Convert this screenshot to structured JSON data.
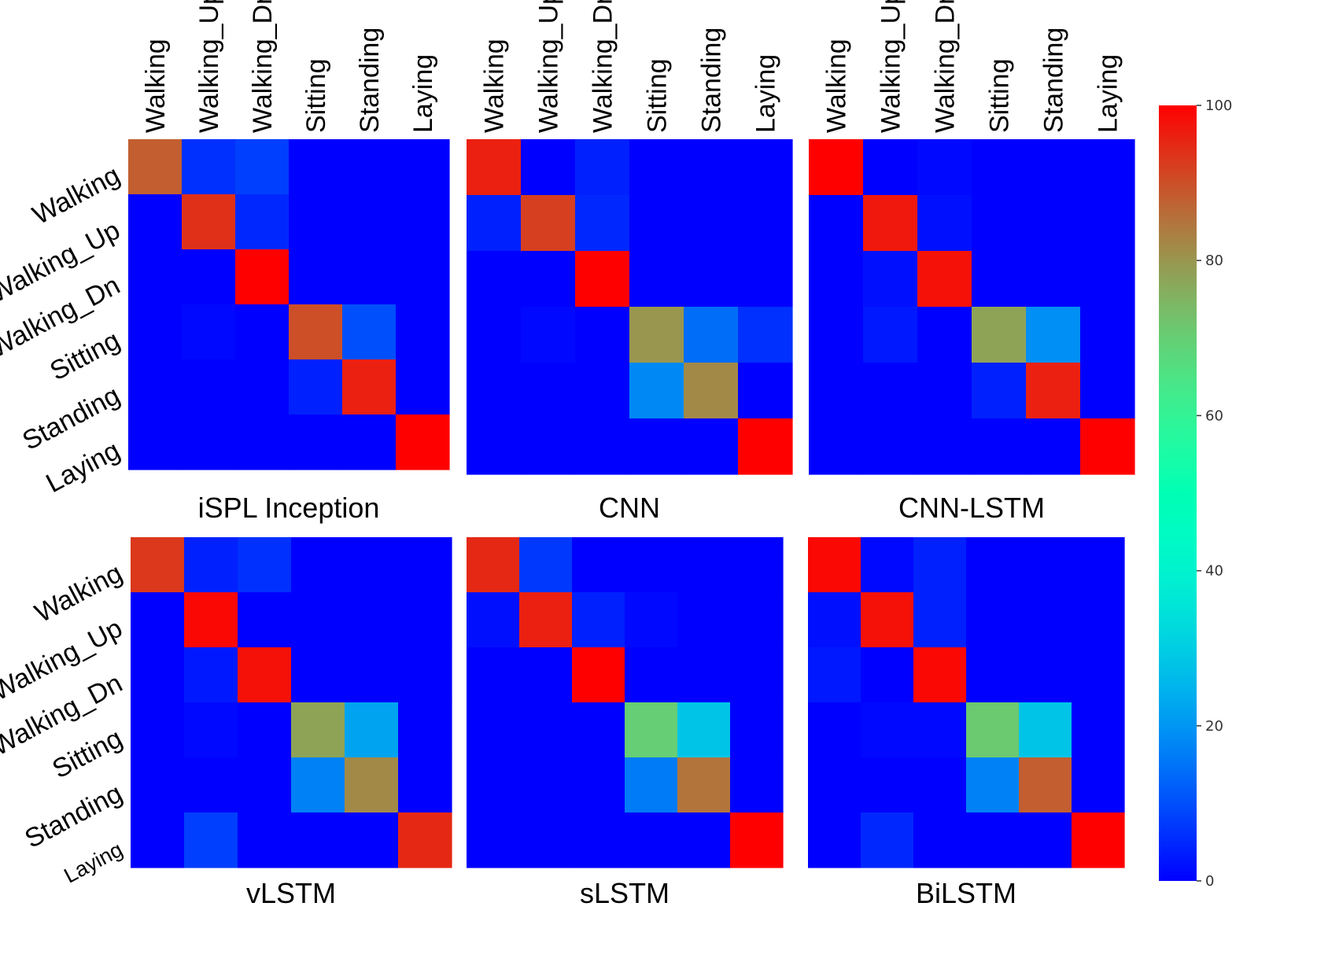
{
  "chart_data": {
    "type": "heatmap",
    "colormap": "rainbow",
    "colorbar": {
      "range": [
        0,
        100
      ],
      "ticks": [
        0,
        20,
        40,
        60,
        80,
        100
      ]
    },
    "categories": [
      "Walking",
      "Walking_Up",
      "Walking_Dn",
      "Sitting",
      "Standing",
      "Laying"
    ],
    "panels": [
      {
        "title": "iSPL Inception",
        "values": [
          [
            88,
            6,
            8,
            0,
            0,
            0
          ],
          [
            0,
            94,
            5,
            0,
            0,
            0
          ],
          [
            0,
            0,
            100,
            0,
            0,
            0
          ],
          [
            0,
            1,
            0,
            90,
            10,
            0
          ],
          [
            0,
            0,
            0,
            4,
            96,
            0
          ],
          [
            0,
            0,
            0,
            0,
            0,
            100
          ]
        ]
      },
      {
        "title": "CNN",
        "values": [
          [
            96,
            0,
            4,
            0,
            0,
            0
          ],
          [
            4,
            92,
            5,
            0,
            0,
            0
          ],
          [
            0,
            0,
            100,
            0,
            0,
            0
          ],
          [
            0,
            1,
            0,
            80,
            14,
            6
          ],
          [
            0,
            0,
            0,
            18,
            82,
            0
          ],
          [
            0,
            0,
            0,
            0,
            0,
            100
          ]
        ]
      },
      {
        "title": "CNN-LSTM",
        "values": [
          [
            100,
            0,
            1,
            0,
            0,
            0
          ],
          [
            0,
            97,
            2,
            0,
            0,
            0
          ],
          [
            0,
            2,
            98,
            0,
            0,
            0
          ],
          [
            0,
            3,
            0,
            78,
            19,
            0
          ],
          [
            0,
            0,
            0,
            4,
            96,
            0
          ],
          [
            0,
            0,
            0,
            0,
            0,
            100
          ]
        ]
      },
      {
        "title": "vLSTM",
        "values": [
          [
            93,
            4,
            6,
            0,
            0,
            0
          ],
          [
            0,
            99,
            0,
            0,
            0,
            0
          ],
          [
            0,
            3,
            98,
            0,
            0,
            0
          ],
          [
            0,
            1,
            0,
            78,
            22,
            0
          ],
          [
            0,
            0,
            0,
            17,
            82,
            0
          ],
          [
            0,
            8,
            0,
            0,
            0,
            95
          ]
        ]
      },
      {
        "title": "sLSTM",
        "values": [
          [
            95,
            7,
            0,
            0,
            0,
            0
          ],
          [
            2,
            96,
            4,
            1,
            0,
            0
          ],
          [
            0,
            0,
            100,
            0,
            0,
            0
          ],
          [
            0,
            0,
            0,
            70,
            28,
            0
          ],
          [
            0,
            0,
            0,
            16,
            85,
            0
          ],
          [
            0,
            0,
            0,
            0,
            0,
            100
          ]
        ]
      },
      {
        "title": "BiLSTM",
        "values": [
          [
            99,
            1,
            4,
            0,
            0,
            0
          ],
          [
            2,
            98,
            4,
            0,
            0,
            0
          ],
          [
            3,
            0,
            99,
            0,
            0,
            0
          ],
          [
            0,
            1,
            1,
            71,
            28,
            0
          ],
          [
            0,
            0,
            0,
            17,
            88,
            0
          ],
          [
            0,
            5,
            0,
            0,
            0,
            100
          ]
        ]
      }
    ]
  }
}
